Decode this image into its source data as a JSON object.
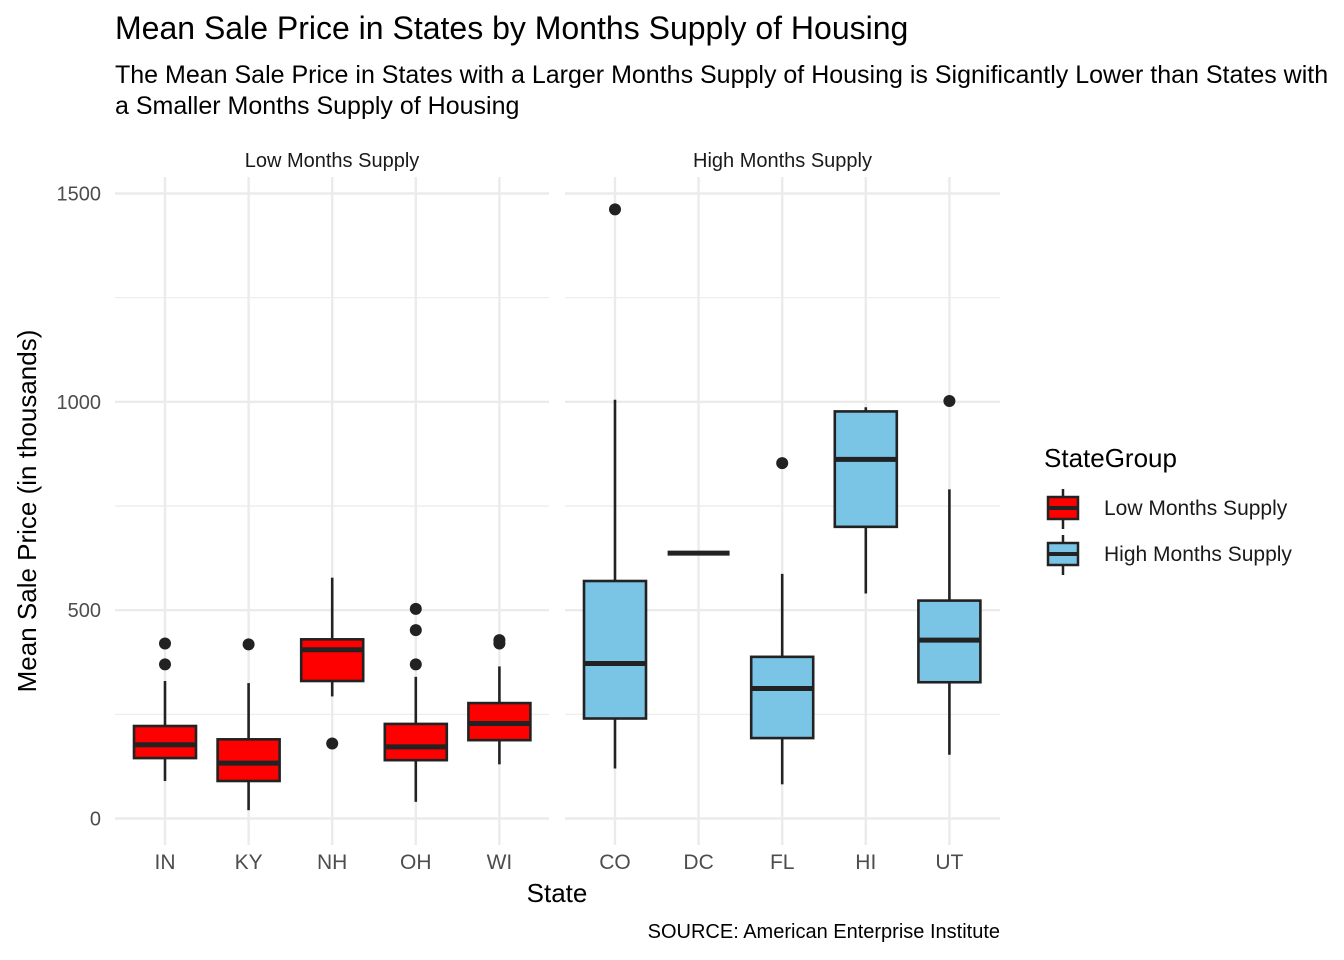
{
  "chart_data": {
    "type": "boxplot",
    "title": "Mean Sale Price in States by Months Supply of Housing",
    "subtitle": "The Mean Sale Price in States with a Larger Months Supply of Housing is Significantly Lower than States with a Smaller Months Supply of Housing",
    "caption": "SOURCE: American Enterprise Institute",
    "xlabel": "State",
    "ylabel": "Mean Sale Price (in thousands)",
    "ylim": [
      -55,
      1565
    ],
    "yticks": [
      0,
      500,
      1000,
      1500
    ],
    "grid": true,
    "legend": {
      "title": "StateGroup",
      "position": "right",
      "items": [
        {
          "label": "Low Months Supply",
          "color": "#ff0000"
        },
        {
          "label": "High Months Supply",
          "color": "#7ac4e6"
        }
      ]
    },
    "facets": [
      {
        "label": "Low Months Supply",
        "fill": "#ff0000",
        "categories": [
          "IN",
          "KY",
          "NH",
          "OH",
          "WI"
        ],
        "boxes": [
          {
            "x": "IN",
            "lower_whisker": 90,
            "q1": 145,
            "median": 177,
            "q3": 222,
            "upper_whisker": 330,
            "outliers": [
              370,
              420
            ]
          },
          {
            "x": "KY",
            "lower_whisker": 20,
            "q1": 90,
            "median": 133,
            "q3": 190,
            "upper_whisker": 325,
            "outliers": [
              418
            ]
          },
          {
            "x": "NH",
            "lower_whisker": 293,
            "q1": 330,
            "median": 405,
            "q3": 430,
            "upper_whisker": 578,
            "outliers": [
              180
            ]
          },
          {
            "x": "OH",
            "lower_whisker": 40,
            "q1": 140,
            "median": 172,
            "q3": 227,
            "upper_whisker": 340,
            "outliers": [
              370,
              452,
              503
            ]
          },
          {
            "x": "WI",
            "lower_whisker": 130,
            "q1": 188,
            "median": 228,
            "q3": 277,
            "upper_whisker": 365,
            "outliers": [
              420,
              428
            ]
          }
        ]
      },
      {
        "label": "High Months Supply",
        "fill": "#7ac4e6",
        "categories": [
          "CO",
          "DC",
          "FL",
          "HI",
          "UT"
        ],
        "boxes": [
          {
            "x": "CO",
            "lower_whisker": 120,
            "q1": 240,
            "median": 372,
            "q3": 570,
            "upper_whisker": 1005,
            "outliers": [
              1462
            ]
          },
          {
            "x": "DC",
            "lower_whisker": 637,
            "q1": 637,
            "median": 637,
            "q3": 637,
            "upper_whisker": 637,
            "outliers": []
          },
          {
            "x": "FL",
            "lower_whisker": 82,
            "q1": 193,
            "median": 312,
            "q3": 388,
            "upper_whisker": 587,
            "outliers": [
              853
            ]
          },
          {
            "x": "HI",
            "lower_whisker": 540,
            "q1": 700,
            "median": 862,
            "q3": 977,
            "upper_whisker": 987,
            "outliers": []
          },
          {
            "x": "UT",
            "lower_whisker": 153,
            "q1": 327,
            "median": 428,
            "q3": 523,
            "upper_whisker": 790,
            "outliers": [
              1002
            ]
          }
        ]
      }
    ]
  }
}
